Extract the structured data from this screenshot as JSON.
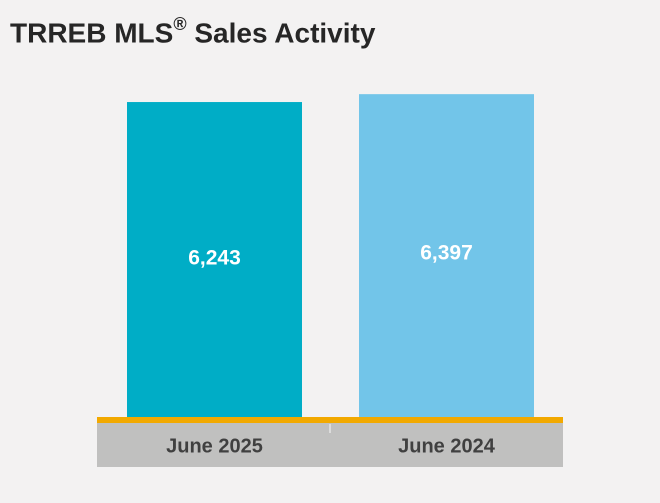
{
  "chart_data": {
    "type": "bar",
    "title_main": "TRREB MLS",
    "title_mark": "®",
    "title_rest": " Sales Activity",
    "categories": [
      "June 2025",
      "June 2024"
    ],
    "values": [
      6243,
      6397
    ],
    "value_labels": [
      "6,243",
      "6,397"
    ],
    "colors": [
      "#00adc6",
      "#72c5e9"
    ],
    "axis_color": "#f2a900",
    "category_band_color": "#c0c0bf",
    "ylim": [
      0,
      6400
    ],
    "grid": false,
    "legend": "none"
  }
}
